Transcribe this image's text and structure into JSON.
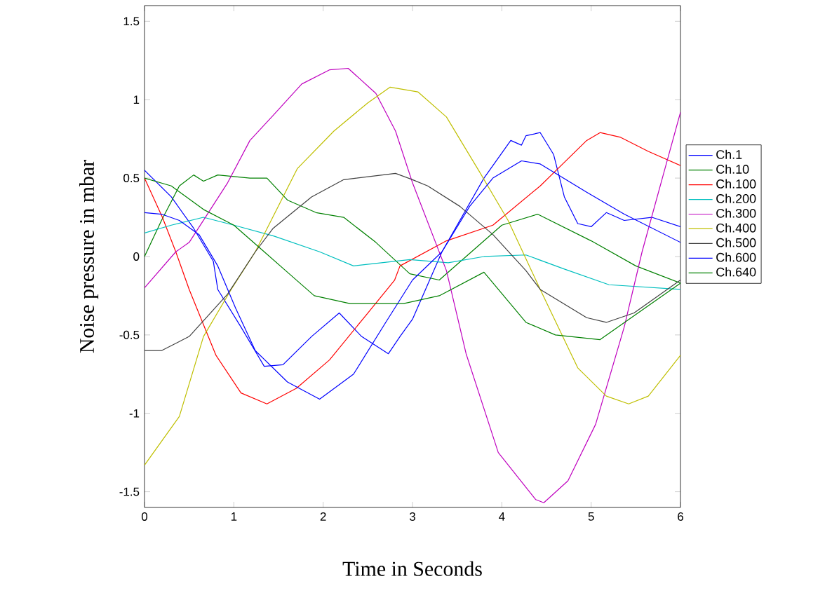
{
  "chart_data": {
    "type": "line",
    "xlabel": "Time in Seconds",
    "ylabel": "Noise pressure in mbar",
    "xlim": [
      0,
      6
    ],
    "ylim": [
      -1.6,
      1.6
    ],
    "xticks": [
      0,
      1,
      2,
      3,
      4,
      5,
      6
    ],
    "yticks": [
      -1.5,
      -1,
      -0.5,
      0,
      0.5,
      1,
      1.5
    ],
    "grid": false,
    "legend": "right",
    "marker": "none",
    "line_style": "solid",
    "series": [
      {
        "name": "Ch.1",
        "color": "#0000ff",
        "x": [
          0,
          0.3,
          0.55,
          0.77,
          0.82,
          1.08,
          1.34,
          1.55,
          1.87,
          2.18,
          2.43,
          2.73,
          2.86,
          3.0,
          3.33,
          3.8,
          4.1,
          4.22,
          4.27,
          4.43,
          4.58,
          4.7,
          4.85,
          5.0,
          5.17,
          5.37,
          5.68,
          6
        ],
        "values": [
          0.55,
          0.38,
          0.18,
          -0.03,
          -0.21,
          -0.45,
          -0.7,
          -0.69,
          -0.51,
          -0.36,
          -0.51,
          -0.62,
          -0.51,
          -0.4,
          0.03,
          0.5,
          0.74,
          0.71,
          0.77,
          0.79,
          0.65,
          0.38,
          0.21,
          0.19,
          0.28,
          0.23,
          0.25,
          0.19
        ]
      },
      {
        "name": "Ch.10",
        "color": "#008000",
        "x": [
          0,
          0.19,
          0.39,
          0.55,
          0.66,
          0.82,
          1.18,
          1.37,
          1.6,
          1.92,
          2.23,
          2.59,
          2.97,
          3.3,
          3.6,
          4.0,
          4.4,
          5.0,
          5.5,
          6
        ],
        "values": [
          0.0,
          0.23,
          0.45,
          0.52,
          0.48,
          0.52,
          0.5,
          0.5,
          0.36,
          0.28,
          0.25,
          0.09,
          -0.11,
          -0.15,
          0.0,
          0.2,
          0.27,
          0.1,
          -0.06,
          -0.17
        ]
      },
      {
        "name": "Ch.100",
        "color": "#ff0000",
        "x": [
          0,
          0.2,
          0.35,
          0.5,
          0.8,
          1.08,
          1.37,
          1.7,
          2.07,
          2.5,
          2.8,
          2.86,
          3.38,
          3.9,
          4.43,
          4.95,
          5.1,
          5.33,
          5.64,
          6
        ],
        "values": [
          0.5,
          0.25,
          0.03,
          -0.21,
          -0.63,
          -0.87,
          -0.94,
          -0.84,
          -0.66,
          -0.36,
          -0.15,
          -0.06,
          0.1,
          0.2,
          0.45,
          0.74,
          0.79,
          0.76,
          0.67,
          0.58
        ]
      },
      {
        "name": "Ch.200",
        "color": "#00bfbf",
        "x": [
          0,
          0.3,
          0.66,
          1.0,
          1.45,
          1.96,
          2.34,
          2.97,
          3.4,
          3.8,
          4.27,
          4.7,
          5.2,
          6
        ],
        "values": [
          0.15,
          0.2,
          0.25,
          0.2,
          0.13,
          0.03,
          -0.06,
          -0.02,
          -0.04,
          0.0,
          0.01,
          -0.08,
          -0.18,
          -0.21
        ]
      },
      {
        "name": "Ch.300",
        "color": "#bf00bf",
        "x": [
          0,
          0.35,
          0.5,
          0.93,
          1.18,
          1.44,
          1.76,
          2.07,
          2.28,
          2.59,
          2.81,
          3.0,
          3.38,
          3.6,
          3.96,
          4.38,
          4.47,
          4.74,
          5.05,
          5.37,
          5.57,
          6
        ],
        "values": [
          -0.2,
          0.03,
          0.09,
          0.47,
          0.74,
          0.9,
          1.1,
          1.19,
          1.2,
          1.04,
          0.8,
          0.47,
          -0.09,
          -0.62,
          -1.25,
          -1.55,
          -1.57,
          -1.43,
          -1.07,
          -0.45,
          0.03,
          0.92
        ]
      },
      {
        "name": "Ch.400",
        "color": "#bfbf00",
        "x": [
          0,
          0.39,
          0.66,
          0.97,
          1.24,
          1.71,
          2.12,
          2.5,
          2.75,
          3.06,
          3.38,
          3.75,
          4.07,
          4.43,
          4.85,
          5.17,
          5.42,
          5.64,
          6
        ],
        "values": [
          -1.33,
          -1.02,
          -0.51,
          -0.21,
          0.03,
          0.56,
          0.8,
          0.98,
          1.08,
          1.05,
          0.89,
          0.54,
          0.23,
          -0.21,
          -0.71,
          -0.89,
          -0.94,
          -0.89,
          -0.63
        ]
      },
      {
        "name": "Ch.500",
        "color": "#404040",
        "x": [
          0,
          0.19,
          0.5,
          0.93,
          1.24,
          1.44,
          1.87,
          2.23,
          2.81,
          3.0,
          3.17,
          3.53,
          3.9,
          4.27,
          4.43,
          4.95,
          5.17,
          5.48,
          6
        ],
        "values": [
          -0.6,
          -0.6,
          -0.51,
          -0.24,
          0.03,
          0.18,
          0.38,
          0.49,
          0.53,
          0.49,
          0.45,
          0.32,
          0.14,
          -0.09,
          -0.21,
          -0.39,
          -0.42,
          -0.36,
          -0.15
        ]
      },
      {
        "name": "Ch.600",
        "color": "#0000ff",
        "x": [
          0,
          0.19,
          0.39,
          0.61,
          0.82,
          1.02,
          1.24,
          1.6,
          1.96,
          2.34,
          2.7,
          3.0,
          3.33,
          3.64,
          3.9,
          4.22,
          4.43,
          4.95,
          5.37,
          6
        ],
        "values": [
          0.28,
          0.27,
          0.23,
          0.14,
          -0.06,
          -0.33,
          -0.6,
          -0.8,
          -0.91,
          -0.75,
          -0.42,
          -0.15,
          0.03,
          0.32,
          0.5,
          0.61,
          0.59,
          0.41,
          0.27,
          0.09
        ]
      },
      {
        "name": "Ch.640",
        "color": "#008000",
        "x": [
          0,
          0.3,
          0.66,
          1.0,
          1.3,
          1.6,
          1.9,
          2.3,
          2.9,
          3.3,
          3.8,
          4.27,
          4.6,
          5.1,
          5.6,
          6
        ],
        "values": [
          0.5,
          0.45,
          0.3,
          0.2,
          0.05,
          -0.1,
          -0.25,
          -0.3,
          -0.3,
          -0.25,
          -0.1,
          -0.42,
          -0.5,
          -0.53,
          -0.33,
          -0.17
        ]
      }
    ]
  }
}
